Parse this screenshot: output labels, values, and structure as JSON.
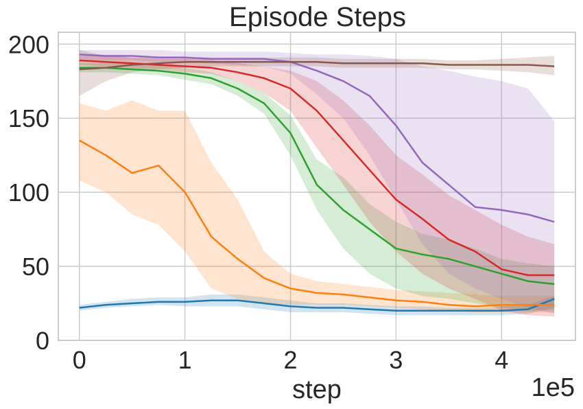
{
  "chart_data": {
    "type": "line",
    "title": "Episode Steps",
    "xlabel": "step",
    "ylabel": "",
    "x_offset_text": "1e5",
    "xlim": [
      -0.2,
      4.7
    ],
    "ylim": [
      0,
      208
    ],
    "xticks": [
      0,
      1,
      2,
      3,
      4
    ],
    "xtick_labels": [
      "0",
      "1",
      "2",
      "3",
      "4"
    ],
    "yticks": [
      0,
      50,
      100,
      150,
      200
    ],
    "ytick_labels": [
      "0",
      "50",
      "100",
      "150",
      "200"
    ],
    "grid": true,
    "x": [
      0,
      0.25,
      0.5,
      0.75,
      1.0,
      1.25,
      1.5,
      1.75,
      2.0,
      2.25,
      2.5,
      2.75,
      3.0,
      3.25,
      3.5,
      3.75,
      4.0,
      4.25,
      4.5
    ],
    "series": [
      {
        "color": "#1f77b4",
        "values": [
          22,
          24,
          25,
          26,
          26,
          27,
          27,
          25,
          23,
          22,
          22,
          21,
          20,
          20,
          20,
          20,
          20,
          21,
          28
        ],
        "upper": [
          24,
          26,
          28,
          29,
          29,
          31,
          31,
          29,
          27,
          25,
          25,
          24,
          23,
          23,
          22,
          22,
          23,
          24,
          30
        ],
        "lower": [
          20,
          22,
          23,
          24,
          23,
          23,
          23,
          21,
          19,
          19,
          19,
          18,
          17,
          17,
          17,
          17,
          17,
          18,
          22
        ]
      },
      {
        "color": "#ff7f0e",
        "values": [
          135,
          125,
          113,
          118,
          100,
          70,
          55,
          42,
          35,
          32,
          31,
          29,
          27,
          26,
          24,
          23,
          24,
          24,
          24
        ],
        "upper": [
          160,
          155,
          162,
          155,
          155,
          120,
          95,
          60,
          45,
          40,
          38,
          36,
          34,
          33,
          32,
          31,
          30,
          30,
          30
        ],
        "lower": [
          108,
          100,
          85,
          78,
          60,
          35,
          28,
          25,
          24,
          24,
          24,
          23,
          22,
          21,
          20,
          19,
          19,
          19,
          19
        ]
      },
      {
        "color": "#2ca02c",
        "values": [
          184,
          184,
          183,
          182,
          180,
          177,
          170,
          160,
          140,
          105,
          88,
          75,
          62,
          58,
          55,
          50,
          45,
          40,
          38
        ],
        "upper": [
          187,
          187,
          187,
          186,
          184,
          181,
          175,
          167,
          152,
          122,
          110,
          92,
          80,
          72,
          68,
          62,
          55,
          52,
          50
        ],
        "lower": [
          181,
          181,
          180,
          179,
          176,
          173,
          165,
          153,
          125,
          88,
          62,
          45,
          35,
          30,
          28,
          25,
          22,
          20,
          20
        ]
      },
      {
        "color": "#d62728",
        "values": [
          189,
          188,
          187,
          186,
          185,
          184,
          181,
          177,
          170,
          155,
          135,
          115,
          95,
          82,
          68,
          60,
          48,
          44,
          44
        ],
        "upper": [
          192,
          192,
          191,
          190,
          190,
          189,
          187,
          185,
          182,
          175,
          162,
          145,
          125,
          112,
          98,
          88,
          78,
          70,
          65
        ],
        "lower": [
          186,
          185,
          184,
          183,
          181,
          180,
          175,
          167,
          155,
          130,
          105,
          80,
          60,
          45,
          35,
          28,
          20,
          17,
          16
        ]
      },
      {
        "color": "#9467bd",
        "values": [
          193,
          192,
          192,
          191,
          191,
          190,
          190,
          190,
          188,
          182,
          175,
          165,
          145,
          120,
          105,
          90,
          88,
          85,
          80
        ],
        "upper": [
          196,
          196,
          196,
          196,
          195,
          195,
          195,
          195,
          194,
          193,
          193,
          192,
          190,
          185,
          182,
          178,
          175,
          170,
          148
        ],
        "lower": [
          190,
          189,
          189,
          188,
          188,
          187,
          186,
          185,
          180,
          166,
          150,
          125,
          95,
          65,
          45,
          35,
          28,
          22,
          18
        ]
      },
      {
        "color": "#8c564b",
        "values": [
          183,
          184,
          186,
          187,
          188,
          188,
          188,
          188,
          188,
          188,
          187,
          187,
          187,
          187,
          186,
          186,
          186,
          186,
          185
        ],
        "upper": [
          196,
          192,
          191,
          191,
          191,
          191,
          191,
          191,
          191,
          191,
          190,
          190,
          190,
          190,
          189,
          189,
          190,
          191,
          192
        ],
        "lower": [
          165,
          175,
          181,
          183,
          184,
          185,
          185,
          185,
          185,
          185,
          184,
          184,
          184,
          184,
          183,
          183,
          182,
          181,
          179
        ]
      }
    ]
  }
}
